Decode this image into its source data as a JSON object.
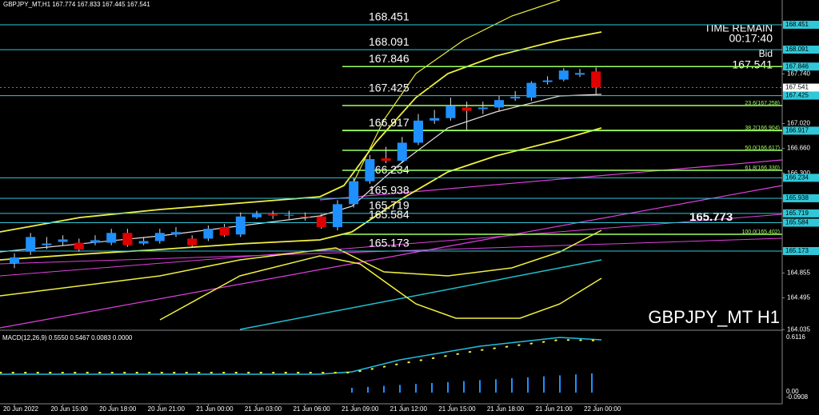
{
  "chart_data": {
    "type": "candlestick",
    "title": "GBPJPY_MT,H1  167.774 167.833 167.445 167.541",
    "categories": [
      "20 Jun 2022",
      null,
      null,
      "20 Jun 15:00",
      null,
      null,
      "20 Jun 18:00",
      null,
      null,
      "20 Jun 21:00",
      null,
      null,
      "21 Jun 00:00",
      null,
      null,
      "21 Jun 03:00",
      null,
      null,
      "21 Jun 06:00",
      null,
      null,
      "21 Jun 09:00",
      null,
      null,
      "21 Jun 12:00",
      null,
      null,
      "21 Jun 15:00",
      null,
      null,
      "21 Jun 18:00",
      null,
      null,
      "21 Jun 21:00",
      null,
      null,
      "22 Jun 00:00"
    ],
    "open": [
      164.997,
      165.164,
      165.258,
      165.306,
      165.294,
      165.294,
      165.294,
      165.436,
      165.282,
      165.318,
      165.413,
      165.353,
      165.353,
      165.52,
      165.413,
      165.662,
      165.709,
      165.686,
      165.674,
      165.674,
      165.52,
      165.852,
      166.185,
      166.517,
      166.481,
      166.743,
      167.063,
      167.099,
      167.253,
      167.23,
      167.253,
      167.384,
      167.396,
      167.622,
      167.657,
      167.728,
      167.774
    ],
    "high": [
      165.14,
      165.436,
      165.377,
      165.401,
      165.353,
      165.401,
      165.496,
      165.496,
      165.377,
      165.496,
      165.52,
      165.401,
      165.543,
      165.567,
      165.733,
      165.757,
      165.757,
      165.757,
      165.733,
      165.709,
      165.911,
      166.232,
      166.565,
      166.683,
      166.826,
      167.158,
      167.218,
      167.396,
      167.337,
      167.337,
      167.42,
      167.491,
      167.633,
      167.705,
      167.823,
      167.812,
      167.833
    ],
    "low": [
      164.926,
      165.116,
      165.199,
      165.258,
      165.164,
      165.258,
      165.258,
      165.235,
      165.258,
      165.282,
      165.377,
      165.235,
      165.318,
      165.377,
      165.377,
      165.638,
      165.638,
      165.638,
      165.615,
      165.496,
      165.472,
      165.804,
      166.149,
      166.446,
      166.446,
      166.707,
      167.016,
      167.063,
      166.921,
      167.158,
      167.206,
      167.348,
      167.348,
      167.586,
      167.633,
      167.693,
      167.445
    ],
    "close": [
      165.081,
      165.377,
      165.282,
      165.341,
      165.199,
      165.33,
      165.436,
      165.258,
      165.318,
      165.436,
      165.448,
      165.258,
      165.496,
      165.401,
      165.674,
      165.709,
      165.686,
      165.698,
      165.662,
      165.52,
      165.852,
      166.185,
      166.505,
      166.481,
      166.743,
      167.063,
      167.099,
      167.277,
      167.206,
      167.253,
      167.36,
      167.408,
      167.61,
      167.645,
      167.788,
      167.752,
      167.541
    ],
    "up_color": "#1e90ff",
    "down_color": "#e00000",
    "ylim": [
      164.026,
      168.81
    ],
    "yticks": [
      {
        "value": 167.74,
        "label": "167.740"
      },
      {
        "value": 167.02,
        "label": "167.020"
      },
      {
        "value": 166.66,
        "label": "166.660"
      },
      {
        "value": 166.3,
        "label": "166.300"
      },
      {
        "value": 164.855,
        "label": "164.855"
      },
      {
        "value": 164.495,
        "label": "164.495"
      },
      {
        "value": 164.035,
        "label": "164.035"
      }
    ],
    "current_price": 167.541,
    "levels": [
      168.451,
      168.091,
      167.846,
      167.425,
      166.917,
      166.234,
      165.938,
      165.719,
      165.584,
      165.173
    ],
    "fib_labels": [
      "23.6(167.258)",
      "38.2(166.904)",
      "50.0(166.617)",
      "61.8(166.330)",
      "100.0(165.402)"
    ],
    "time_remain_label": "TIME REMAIN",
    "time_remain": "00:17:40",
    "bid_label": "Bid",
    "bid": "167.541",
    "marker_label": "165.773",
    "symbol_label": "GBPJPY_MT H1",
    "macd_title": "MACD(12,26,9) 0.5550 0.5467 0.0083 0.0000",
    "macd_ticks": [
      "0.6116",
      "0.00",
      "-0.0908"
    ]
  }
}
